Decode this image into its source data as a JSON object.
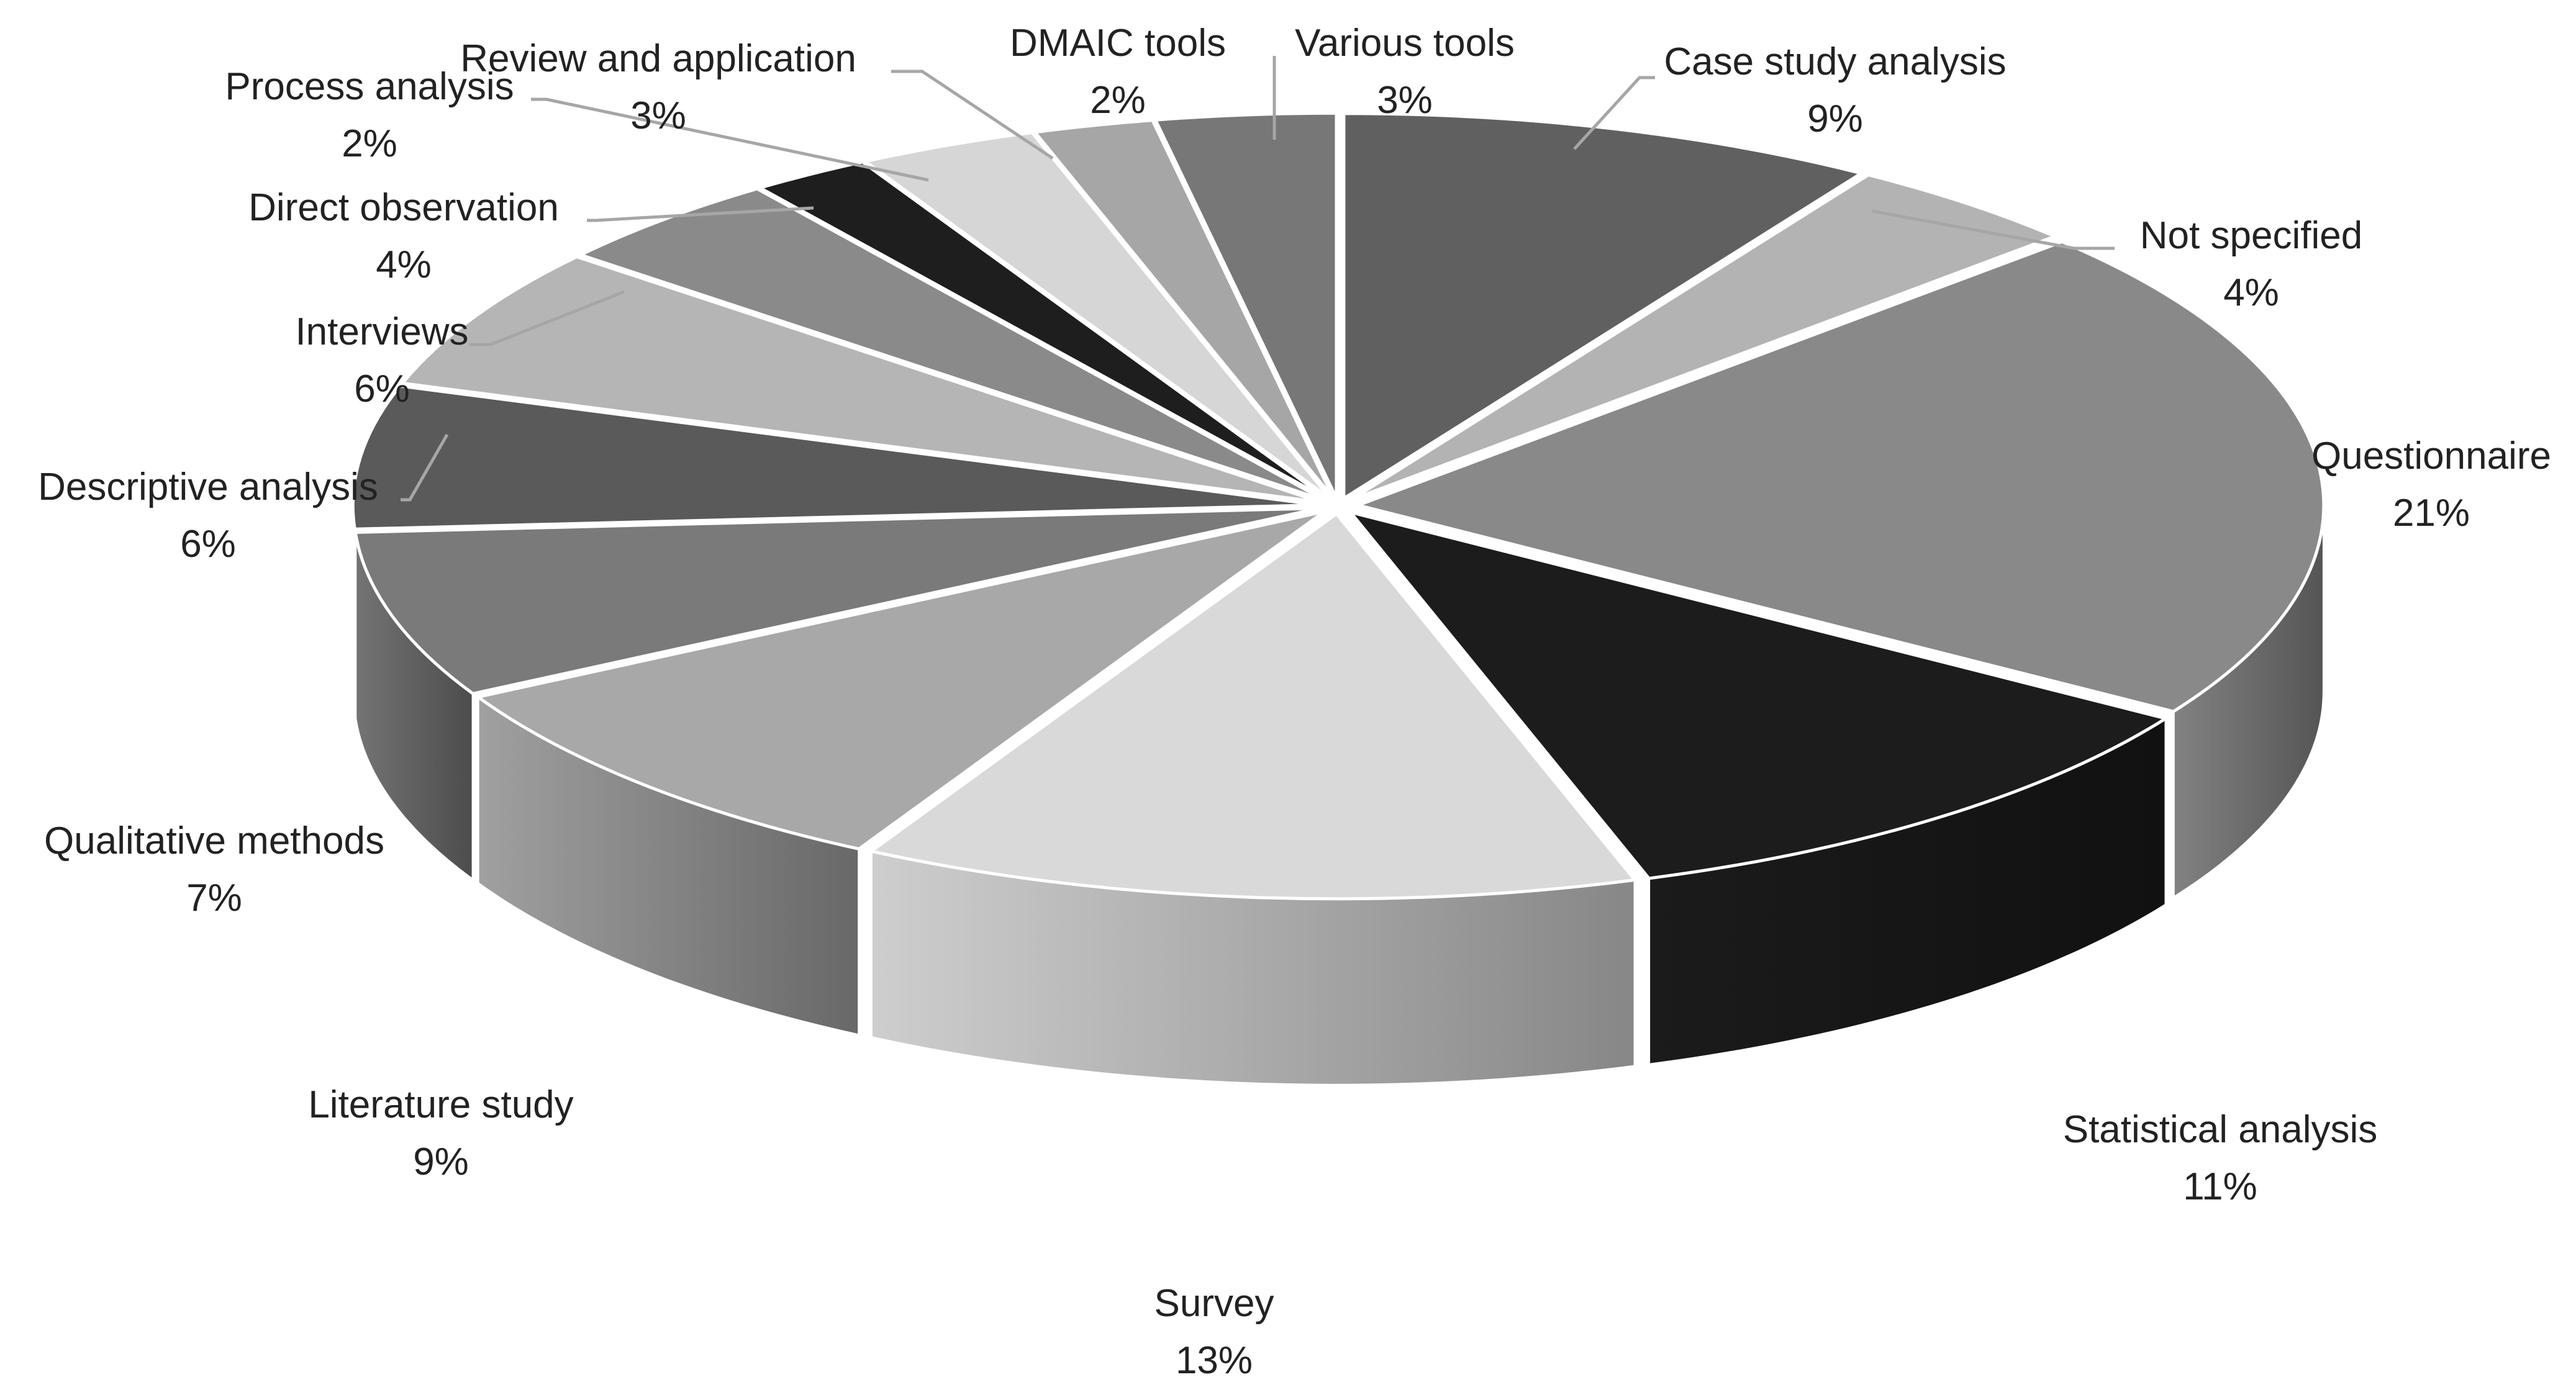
{
  "chart_data": {
    "type": "pie",
    "style": "3d-exploded",
    "categories": [
      "Case study analysis",
      "Not specified",
      "Questionnaire",
      "Statistical analysis",
      "Survey",
      "Literature study",
      "Qualitative methods",
      "Descriptive analysis",
      "Interviews",
      "Direct observation",
      "Process analysis",
      "Review and application",
      "DMAIC tools",
      "Various tools"
    ],
    "values": [
      9,
      4,
      21,
      11,
      13,
      9,
      7,
      6,
      6,
      4,
      2,
      3,
      2,
      3
    ],
    "value_labels": [
      "9%",
      "4%",
      "21%",
      "11%",
      "13%",
      "9%",
      "7%",
      "6%",
      "6%",
      "4%",
      "2%",
      "3%",
      "2%",
      "3%"
    ],
    "colors": [
      "#606060",
      "#b3b3b3",
      "#898989",
      "#1c1c1c",
      "#d9d9d9",
      "#a8a8a8",
      "#7a7a7a",
      "#5a5a5a",
      "#b5b5b5",
      "#8a8a8a",
      "#1e1e1e",
      "#d6d6d6",
      "#a6a6a6",
      "#777777"
    ],
    "legend": "none"
  }
}
